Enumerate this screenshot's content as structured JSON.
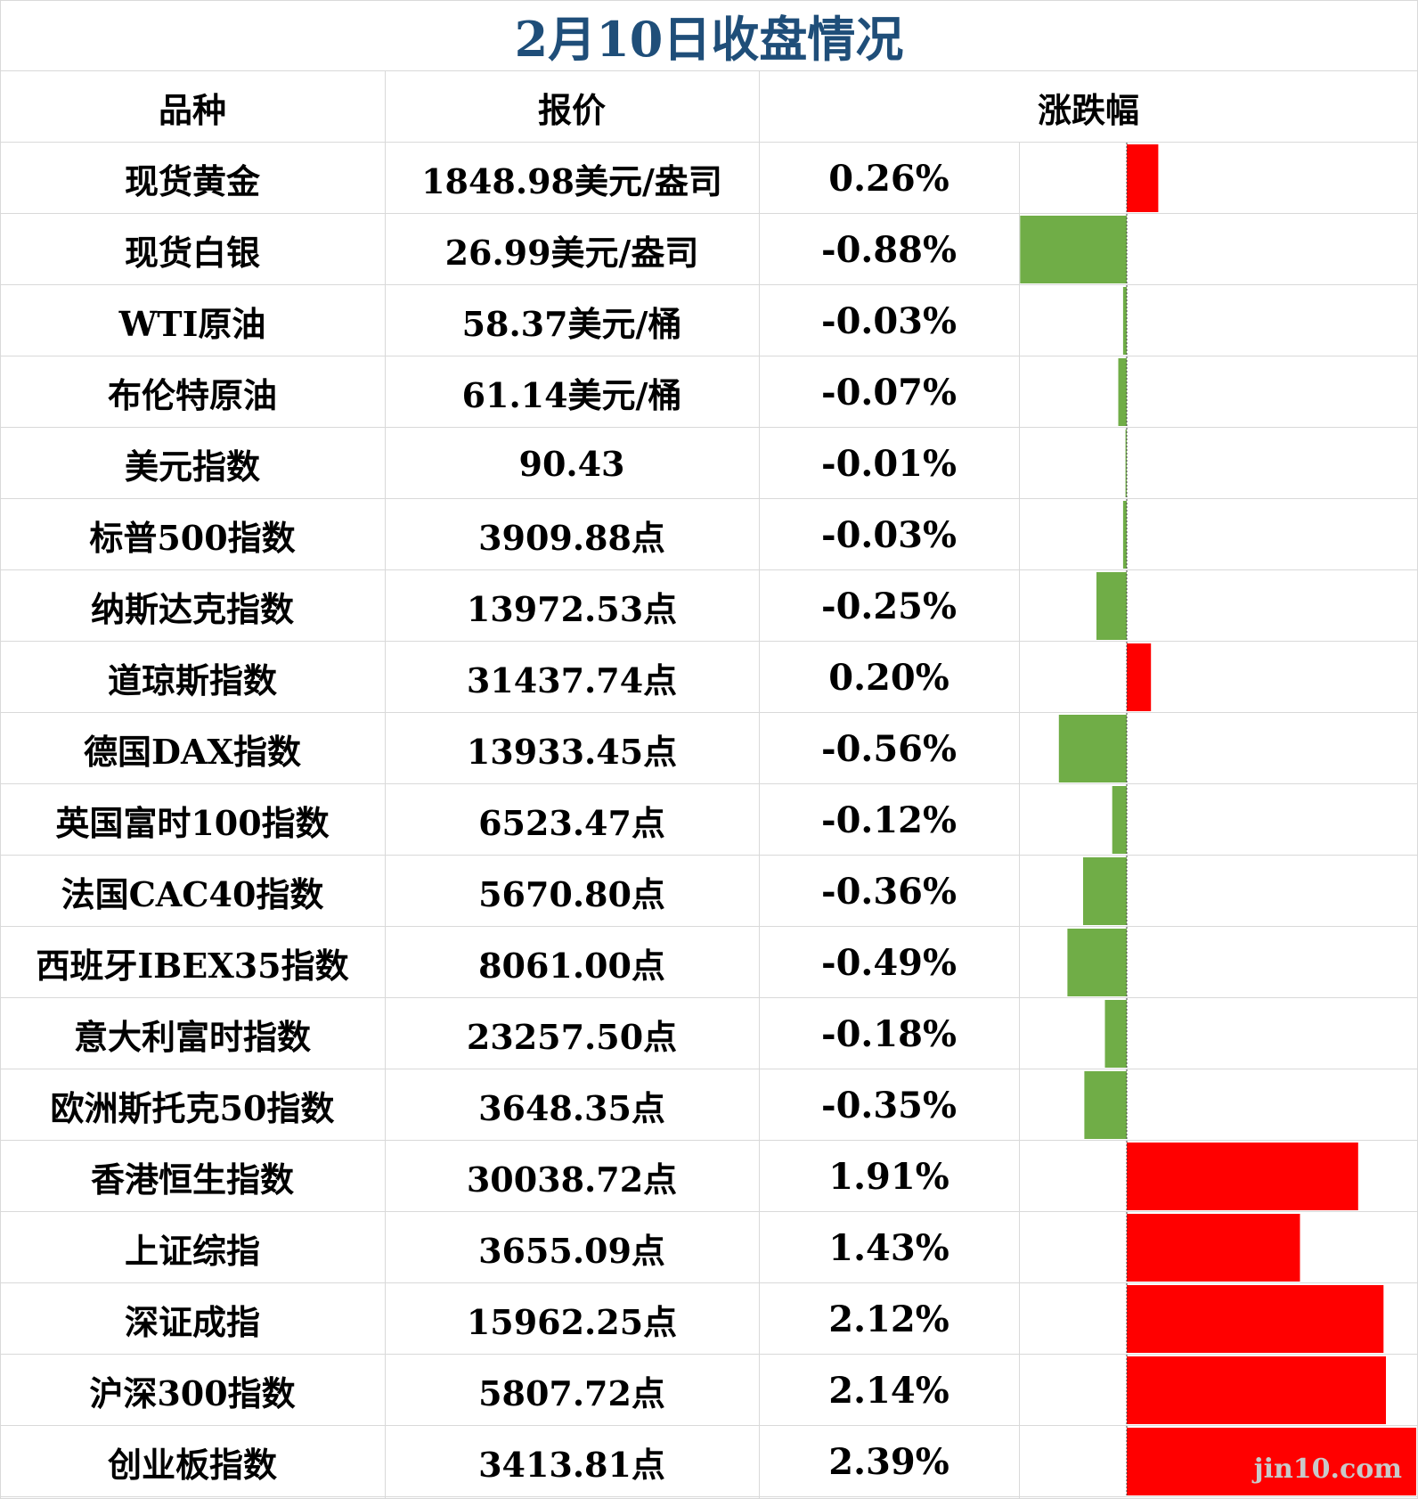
{
  "title": "2月10日收盘情况",
  "headers": {
    "name": "品种",
    "price": "报价",
    "change": "涨跌幅"
  },
  "colors": {
    "up": "#ff0000",
    "down": "#70ad47",
    "title": "#1f4e79",
    "grid": "#d9d9d9"
  },
  "watermark": "jin10.com",
  "chart_data": {
    "type": "bar",
    "orientation": "horizontal",
    "categories": [
      "现货黄金",
      "现货白银",
      "WTI原油",
      "布伦特原油",
      "美元指数",
      "标普500指数",
      "纳斯达克指数",
      "道琼斯指数",
      "德国DAX指数",
      "英国富时100指数",
      "法国CAC40指数",
      "西班牙IBEX35指数",
      "意大利富时指数",
      "欧洲斯托克50指数",
      "香港恒生指数",
      "上证综指",
      "深证成指",
      "沪深300指数",
      "创业板指数"
    ],
    "prices": [
      "1848.98美元/盎司",
      "26.99美元/盎司",
      "58.37美元/桶",
      "61.14美元/桶",
      "90.43",
      "3909.88点",
      "13972.53点",
      "31437.74点",
      "13933.45点",
      "6523.47点",
      "5670.80点",
      "8061.00点",
      "23257.50点",
      "3648.35点",
      "30038.72点",
      "3655.09点",
      "15962.25点",
      "5807.72点",
      "3413.81点"
    ],
    "labels": [
      "0.26%",
      "-0.88%",
      "-0.03%",
      "-0.07%",
      "-0.01%",
      "-0.03%",
      "-0.25%",
      "0.20%",
      "-0.56%",
      "-0.12%",
      "-0.36%",
      "-0.49%",
      "-0.18%",
      "-0.35%",
      "1.91%",
      "1.43%",
      "2.12%",
      "2.14%",
      "2.39%"
    ],
    "values": [
      0.26,
      -0.88,
      -0.03,
      -0.07,
      -0.01,
      -0.03,
      -0.25,
      0.2,
      -0.56,
      -0.12,
      -0.36,
      -0.49,
      -0.18,
      -0.35,
      1.91,
      1.43,
      2.12,
      2.14,
      2.39
    ],
    "xlim": [
      -0.88,
      2.39
    ]
  }
}
